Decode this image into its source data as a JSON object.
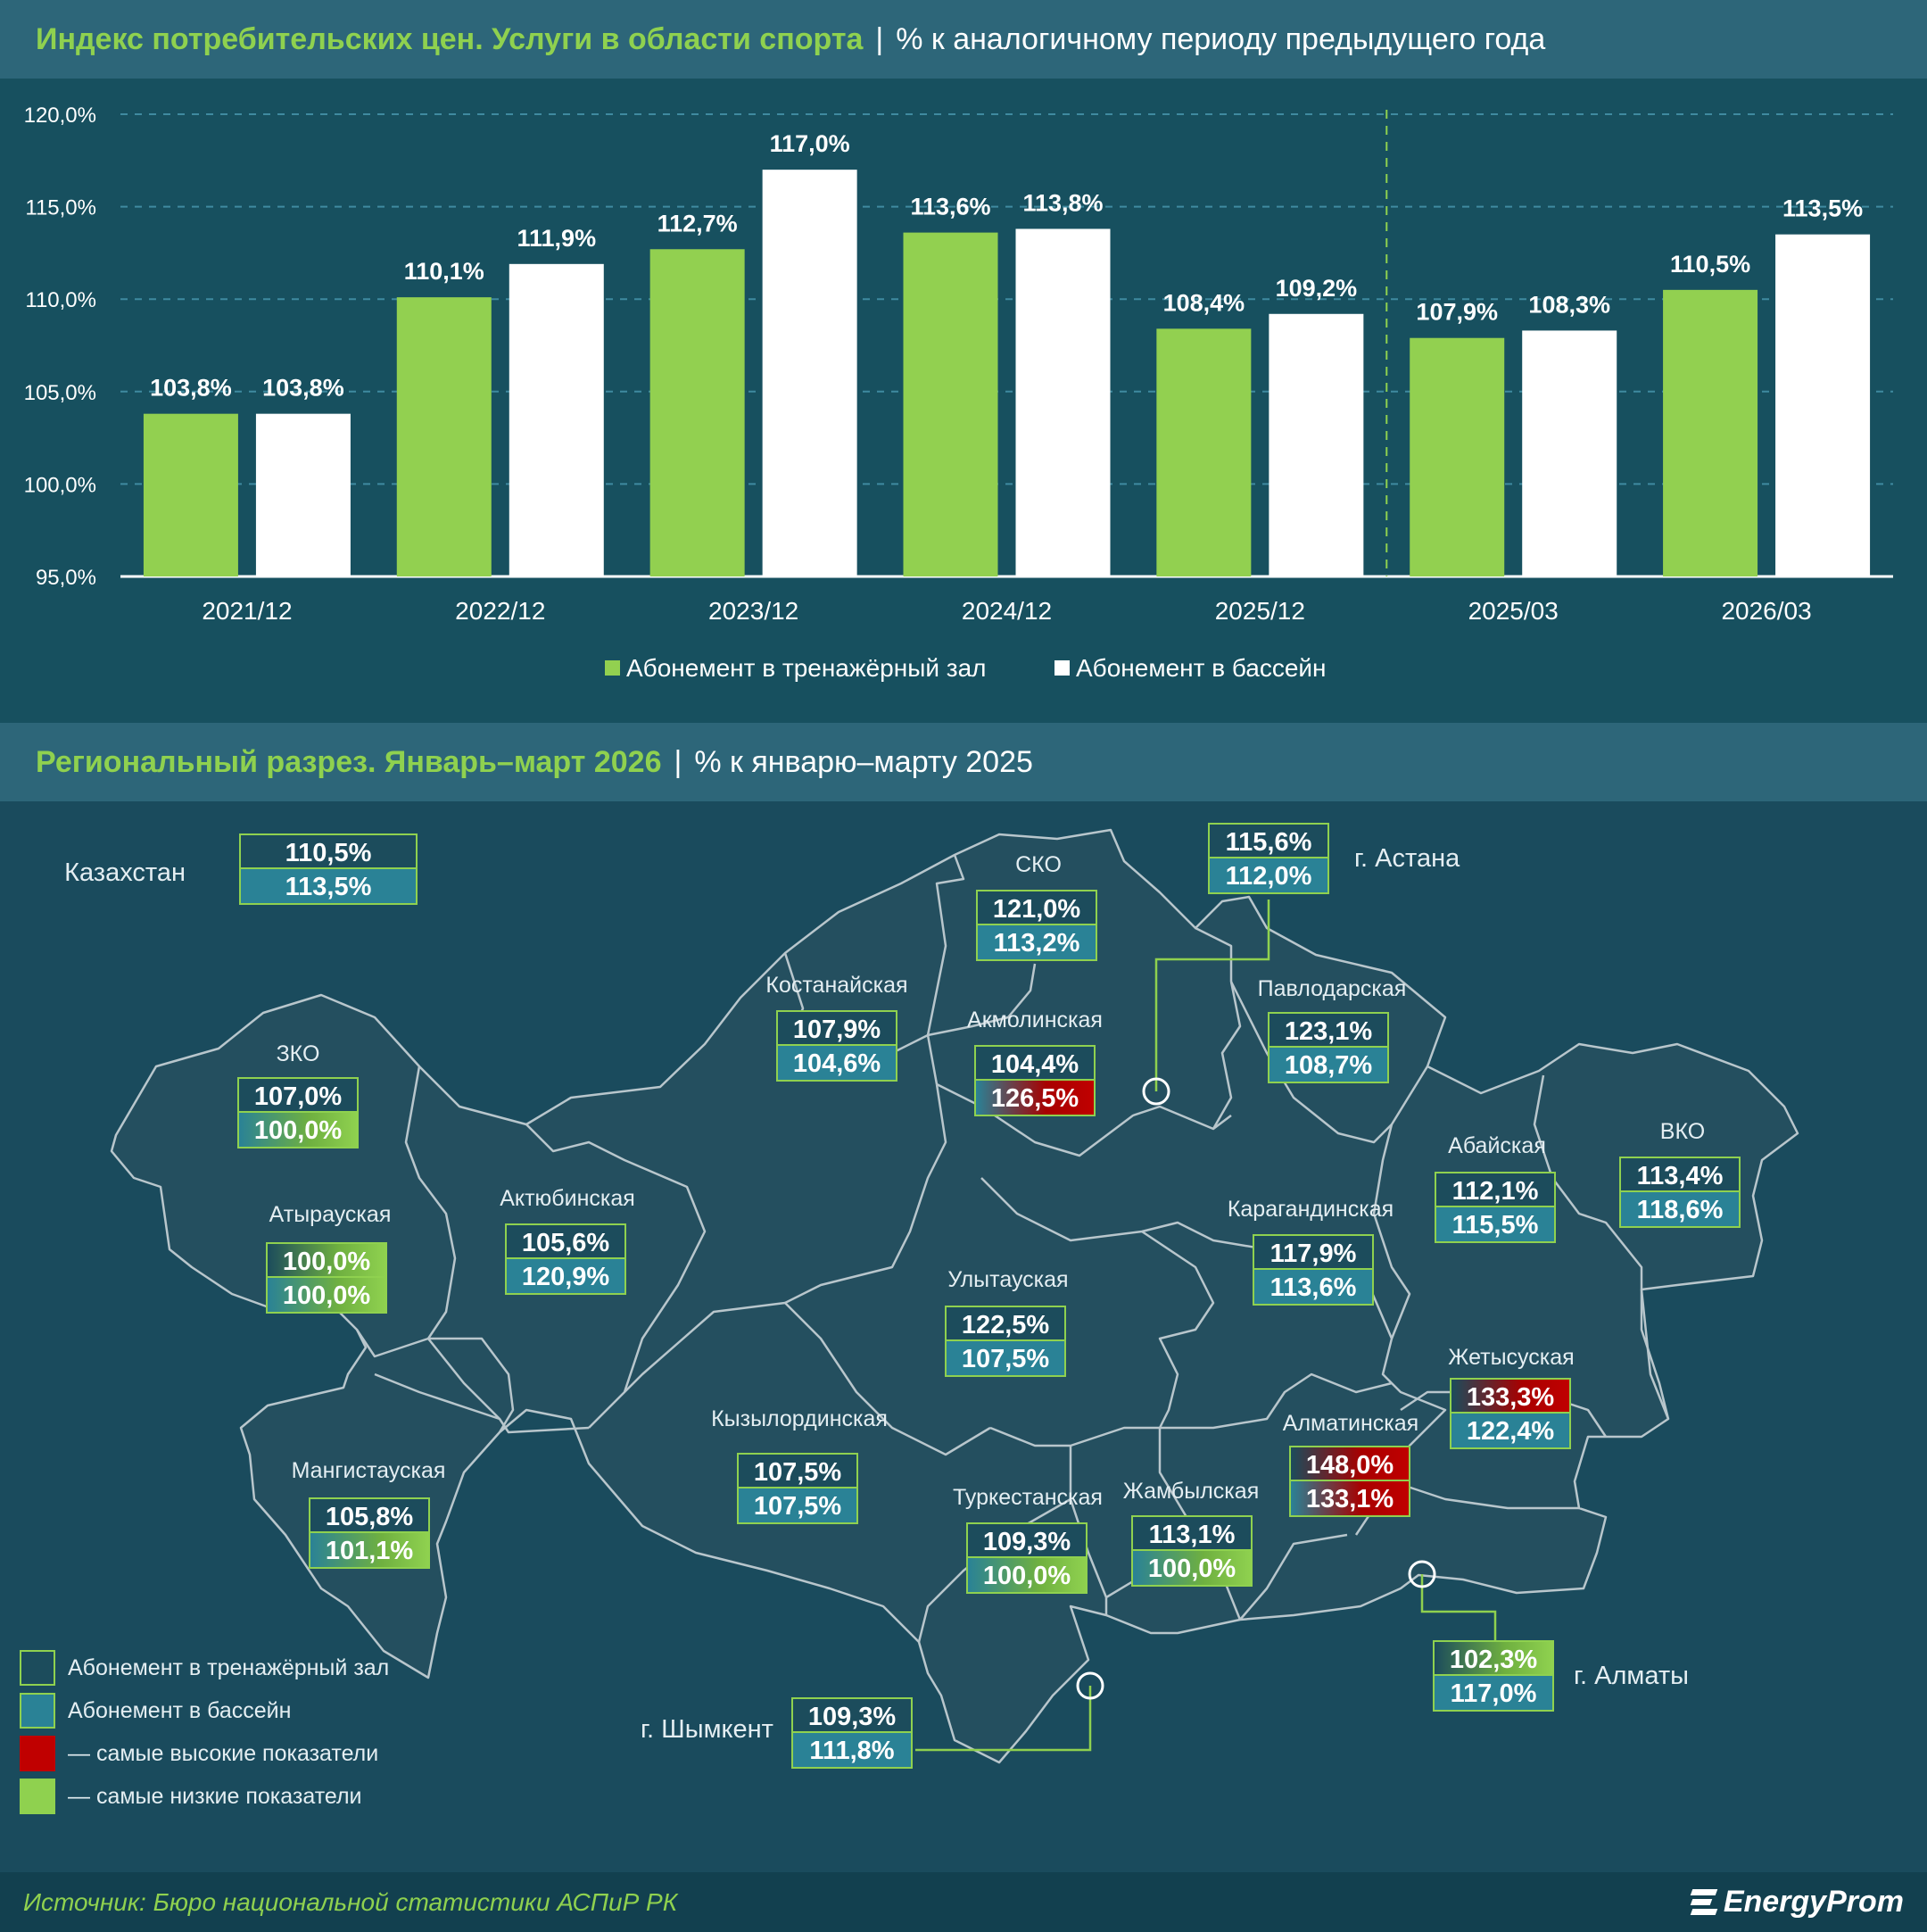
{
  "chart_title": {
    "main": "Индекс потребительских цен. Услуги в области спорта",
    "sep": "|",
    "unit": "% к аналогичному периоду предыдущего года"
  },
  "chart_data": {
    "type": "bar",
    "categories": [
      "2021/12",
      "2022/12",
      "2023/12",
      "2024/12",
      "2025/12",
      "2025/03",
      "2026/03"
    ],
    "series": [
      {
        "name": "Абонемент в тренажёрный зал",
        "values": [
          103.8,
          110.1,
          112.7,
          113.6,
          108.4,
          107.9,
          110.5
        ],
        "labels": [
          "103,8%",
          "110,1%",
          "112,7%",
          "113,6%",
          "108,4%",
          "107,9%",
          "110,5%"
        ]
      },
      {
        "name": "Абонемент в бассейн",
        "values": [
          103.8,
          111.9,
          117.0,
          113.8,
          109.2,
          108.3,
          113.5
        ],
        "labels": [
          "103,8%",
          "111,9%",
          "117,0%",
          "113,8%",
          "109,2%",
          "108,3%",
          "113,5%"
        ]
      }
    ],
    "ylim": [
      95,
      120
    ],
    "yticks": [
      "95,0%",
      "100,0%",
      "105,0%",
      "110,0%",
      "115,0%",
      "120,0%"
    ],
    "legend_position": "bottom",
    "colors": {
      "gym": "#92d050",
      "pool": "#ffffff"
    },
    "grid": true
  },
  "map_title": {
    "main": "Региональный разрез. Январь–март 2026",
    "sep": "|",
    "unit": "% к январю–марту 2025"
  },
  "map_regions": [
    {
      "id": "kz",
      "name": "Казахстан",
      "gym": "110,5%",
      "pool": "113,5%"
    },
    {
      "id": "sko",
      "name": "СКО",
      "gym": "121,0%",
      "pool": "113,2%"
    },
    {
      "id": "astana",
      "name": "г. Астана",
      "gym": "115,6%",
      "pool": "112,0%"
    },
    {
      "id": "kostanay",
      "name": "Костанайская",
      "gym": "107,9%",
      "pool": "104,6%"
    },
    {
      "id": "akmola",
      "name": "Акмолинская",
      "gym": "104,4%",
      "pool": "126,5%",
      "pool_flag": "high"
    },
    {
      "id": "pavlodar",
      "name": "Павлодарская",
      "gym": "123,1%",
      "pool": "108,7%"
    },
    {
      "id": "zko",
      "name": "ЗКО",
      "gym": "107,0%",
      "pool": "100,0%",
      "pool_flag": "low"
    },
    {
      "id": "aktobe",
      "name": "Актюбинская",
      "gym": "105,6%",
      "pool": "120,9%"
    },
    {
      "id": "atyrau",
      "name": "Атырауская",
      "gym": "100,0%",
      "pool": "100,0%",
      "gym_flag": "low",
      "pool_flag": "low"
    },
    {
      "id": "abai",
      "name": "Абайская",
      "gym": "112,1%",
      "pool": "115,5%"
    },
    {
      "id": "vko",
      "name": "ВКО",
      "gym": "113,4%",
      "pool": "118,6%"
    },
    {
      "id": "karaganda",
      "name": "Карагандинская",
      "gym": "117,9%",
      "pool": "113,6%"
    },
    {
      "id": "ulytau",
      "name": "Улытауская",
      "gym": "122,5%",
      "pool": "107,5%"
    },
    {
      "id": "zhetysu",
      "name": "Жетысуская",
      "gym": "133,3%",
      "pool": "122,4%",
      "gym_flag": "high"
    },
    {
      "id": "almaty_reg",
      "name": "Алматинская",
      "gym": "148,0%",
      "pool": "133,1%",
      "gym_flag": "high",
      "pool_flag": "high"
    },
    {
      "id": "kyzylorda",
      "name": "Кызылординская",
      "gym": "107,5%",
      "pool": "107,5%"
    },
    {
      "id": "mangystau",
      "name": "Мангистауская",
      "gym": "105,8%",
      "pool": "101,1%",
      "pool_flag": "low"
    },
    {
      "id": "turkestan",
      "name": "Туркестанская",
      "gym": "109,3%",
      "pool": "100,0%",
      "pool_flag": "low"
    },
    {
      "id": "zhambyl",
      "name": "Жамбылская",
      "gym": "113,1%",
      "pool": "100,0%",
      "pool_flag": "low"
    },
    {
      "id": "almaty",
      "name": "г. Алматы",
      "gym": "102,3%",
      "pool": "117,0%",
      "gym_flag": "low"
    },
    {
      "id": "shymkent",
      "name": "г. Шымкент",
      "gym": "109,3%",
      "pool": "111,8%"
    }
  ],
  "map_legend": {
    "gym": "Абонемент в тренажёрный зал",
    "pool": "Абонемент в бассейн",
    "high": "— самые высокие показатели",
    "low": "— самые низкие показатели"
  },
  "footer": {
    "source": "Источник: Бюро национальной статистики АСПиР РК",
    "logo": "EnergyProm"
  }
}
